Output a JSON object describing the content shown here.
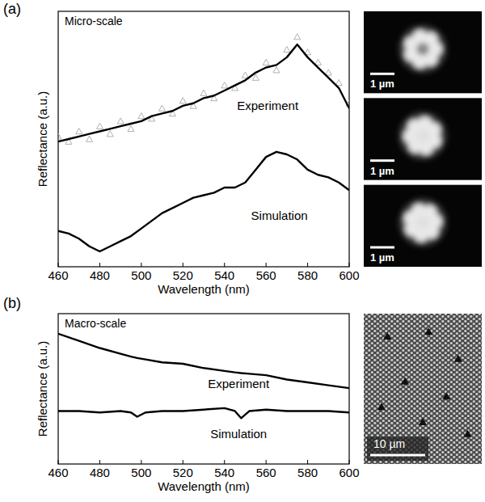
{
  "chart_data": [
    {
      "type": "line",
      "panel": "(a)",
      "title": "Micro-scale",
      "x_label": "Wavelength (nm)",
      "y_label": "Reflectance (a.u.)",
      "x": [
        460,
        465,
        470,
        475,
        480,
        485,
        490,
        495,
        500,
        505,
        510,
        515,
        520,
        525,
        530,
        535,
        540,
        545,
        550,
        555,
        560,
        565,
        570,
        575,
        580,
        585,
        590,
        595,
        600
      ],
      "series": [
        {
          "name": "Experiment",
          "type": "line",
          "color": "#000000",
          "values": [
            0.49,
            0.5,
            0.51,
            0.52,
            0.53,
            0.54,
            0.55,
            0.56,
            0.57,
            0.59,
            0.6,
            0.61,
            0.63,
            0.64,
            0.66,
            0.67,
            0.69,
            0.71,
            0.73,
            0.76,
            0.78,
            0.79,
            0.82,
            0.87,
            0.82,
            0.78,
            0.74,
            0.7,
            0.62
          ]
        },
        {
          "type": "scatter",
          "marker": "triangle",
          "color": "#b0b0b0",
          "values": [
            0.51,
            0.49,
            0.53,
            0.5,
            0.55,
            0.52,
            0.57,
            0.54,
            0.59,
            0.58,
            0.62,
            0.6,
            0.65,
            0.63,
            0.68,
            0.66,
            0.71,
            0.7,
            0.75,
            0.74,
            0.8,
            0.77,
            0.85,
            0.9,
            0.84,
            0.8,
            0.76,
            0.72,
            0.64
          ]
        },
        {
          "name": "Simulation",
          "type": "line",
          "color": "#000000",
          "values": [
            0.14,
            0.13,
            0.11,
            0.08,
            0.06,
            0.08,
            0.1,
            0.12,
            0.15,
            0.18,
            0.21,
            0.23,
            0.25,
            0.27,
            0.28,
            0.29,
            0.31,
            0.31,
            0.33,
            0.38,
            0.43,
            0.45,
            0.44,
            0.42,
            0.38,
            0.36,
            0.35,
            0.33,
            0.3
          ]
        }
      ],
      "xlim": [
        460,
        600
      ],
      "xticks": [
        460,
        480,
        500,
        520,
        540,
        560,
        580,
        600
      ],
      "ylim": [
        0,
        1
      ],
      "grid": false,
      "tick_labels": "x"
    },
    {
      "type": "line",
      "panel": "(b)",
      "title": "Macro-scale",
      "x_label": "Wavelength (nm)",
      "y_label": "Reflectance (a.u.)",
      "x": [
        460,
        470,
        480,
        490,
        495,
        498,
        502,
        510,
        520,
        530,
        540,
        545,
        548,
        552,
        560,
        570,
        580,
        590,
        600
      ],
      "series": [
        {
          "name": "Experiment",
          "type": "line",
          "color": "#000000",
          "values": [
            0.91,
            0.86,
            0.81,
            0.77,
            0.75,
            0.74,
            0.73,
            0.71,
            0.7,
            0.67,
            0.65,
            0.64,
            0.635,
            0.63,
            0.62,
            0.59,
            0.57,
            0.55,
            0.53
          ]
        },
        {
          "name": "Simulation",
          "type": "line",
          "color": "#000000",
          "values": [
            0.37,
            0.37,
            0.36,
            0.37,
            0.36,
            0.33,
            0.36,
            0.37,
            0.37,
            0.38,
            0.39,
            0.37,
            0.32,
            0.37,
            0.38,
            0.37,
            0.37,
            0.37,
            0.36
          ]
        }
      ],
      "xlim": [
        460,
        600
      ],
      "xticks": [
        460,
        480,
        500,
        520,
        540,
        560,
        580,
        600
      ],
      "ylim": [
        0,
        1.05
      ],
      "grid": false,
      "tick_labels": "x"
    }
  ],
  "images": [
    {
      "scale_bars": [
        "1 µm",
        "1 µm",
        "1 µm"
      ]
    },
    {
      "scale_bars": [
        "10 µm"
      ]
    }
  ]
}
